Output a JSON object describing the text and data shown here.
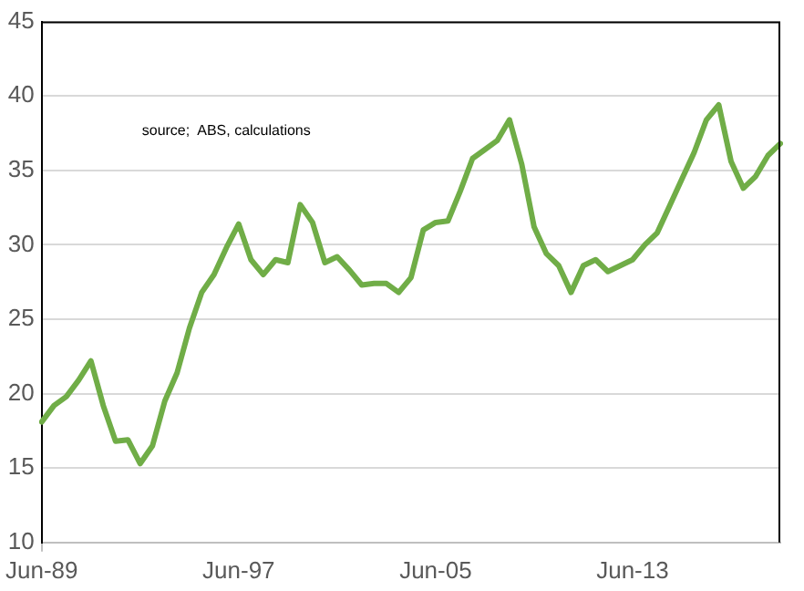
{
  "chart_data": {
    "type": "line",
    "categories": [
      "Jun-89",
      null,
      null,
      null,
      null,
      null,
      null,
      null,
      null,
      null,
      null,
      null,
      null,
      null,
      null,
      null,
      "Jun-97",
      null,
      null,
      null,
      null,
      null,
      null,
      null,
      null,
      null,
      null,
      null,
      null,
      null,
      null,
      null,
      "Jun-05",
      null,
      null,
      null,
      null,
      null,
      null,
      null,
      null,
      null,
      null,
      null,
      null,
      null,
      null,
      null,
      "Jun-13",
      null,
      null,
      null,
      null,
      null,
      null,
      null,
      null,
      null,
      null,
      null,
      null
    ],
    "series": [
      {
        "color": "#70ad47",
        "values": [
          18.1,
          19.2,
          19.8,
          20.9,
          22.2,
          19.2,
          16.8,
          16.9,
          15.3,
          16.5,
          19.5,
          21.4,
          24.4,
          26.8,
          28.0,
          29.8,
          31.4,
          29.0,
          28.0,
          29.0,
          28.8,
          32.7,
          31.5,
          28.8,
          29.2,
          28.3,
          27.3,
          27.4,
          27.4,
          26.8,
          27.8,
          31.0,
          31.5,
          31.6,
          33.6,
          35.8,
          36.4,
          37.0,
          38.4,
          35.4,
          31.2,
          29.4,
          28.6,
          26.8,
          28.6,
          29.0,
          28.2,
          28.6,
          29.0,
          30.0,
          30.8,
          32.6,
          34.4,
          36.2,
          38.4,
          39.4,
          35.6,
          33.8,
          34.6,
          36.0,
          36.8
        ]
      }
    ],
    "ylim": [
      10,
      45
    ],
    "yticks": [
      10,
      15,
      20,
      25,
      30,
      35,
      40,
      45
    ],
    "grid": "y",
    "legend": false,
    "marker": "none",
    "line_style": "solid",
    "annotations": [
      "source;  ABS, calculations"
    ]
  }
}
